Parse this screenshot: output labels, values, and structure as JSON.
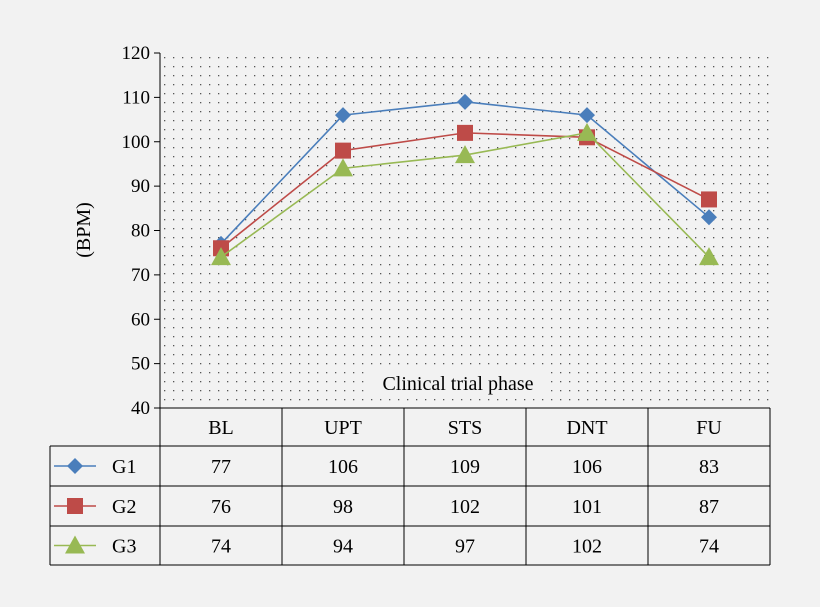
{
  "chart_data": {
    "type": "line",
    "ylabel": "(BPM)",
    "xlabel": "Clinical trial phase",
    "categories": [
      "BL",
      "UPT",
      "STS",
      "DNT",
      "FU"
    ],
    "ylim": [
      40,
      120
    ],
    "yticks": [
      40,
      50,
      60,
      70,
      80,
      90,
      100,
      110,
      120
    ],
    "grid": "dotted",
    "legend": "data-table-left",
    "series": [
      {
        "name": "G1",
        "values": [
          77,
          106,
          109,
          106,
          83
        ],
        "color": "#4a7ebb",
        "marker": "diamond"
      },
      {
        "name": "G2",
        "values": [
          76,
          98,
          102,
          101,
          87
        ],
        "color": "#be4b48",
        "marker": "square"
      },
      {
        "name": "G3",
        "values": [
          74,
          94,
          97,
          102,
          74
        ],
        "color": "#98b954",
        "marker": "triangle"
      }
    ]
  }
}
